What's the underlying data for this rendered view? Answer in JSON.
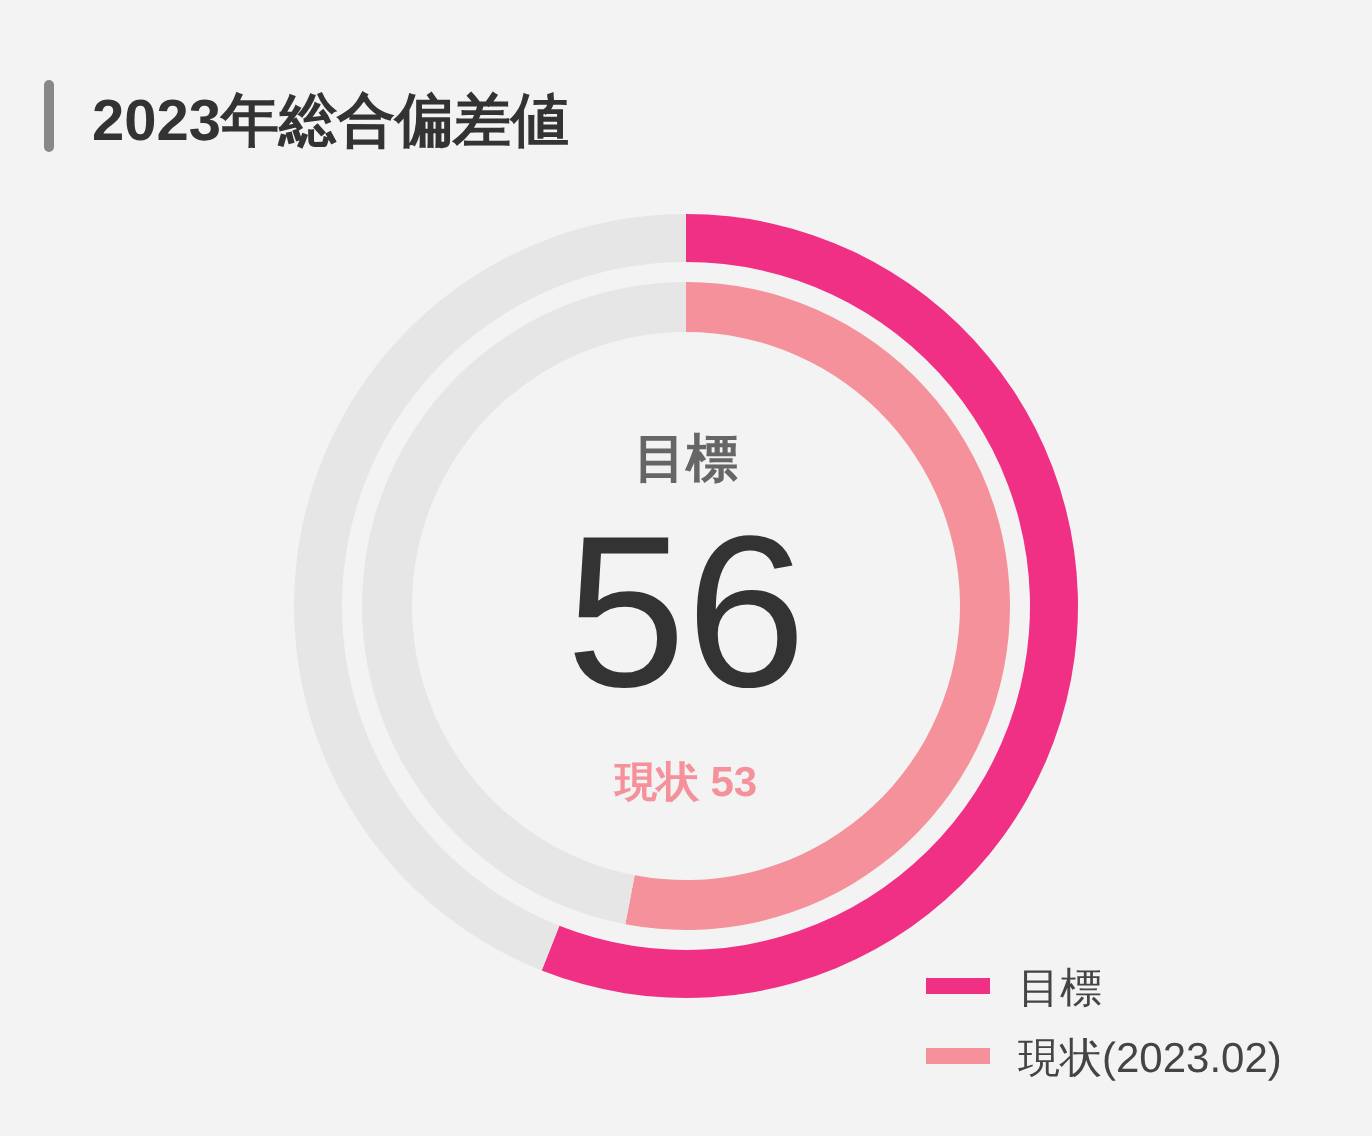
{
  "chart_data": {
    "type": "donut",
    "title": "2023年総合偏差値",
    "categories": [
      null,
      null
    ],
    "series": [
      {
        "name": "目標",
        "colors": [
          "#f03085",
          "#e6e6e6"
        ],
        "values": [
          56,
          44
        ]
      },
      {
        "name": "現状(2023.02)",
        "colors": [
          "#f5919a",
          "#e6e6e6"
        ],
        "values": [
          53,
          47
        ]
      }
    ],
    "legend": "bottom right",
    "annotations": [
      "目標",
      "56",
      "現状 53"
    ]
  }
}
